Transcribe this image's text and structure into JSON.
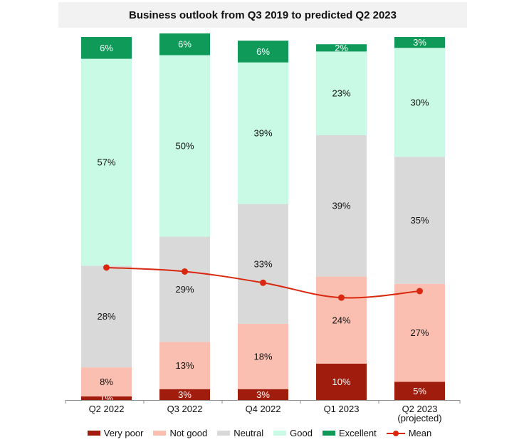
{
  "chart_data": {
    "type": "bar",
    "stacked": true,
    "title": "Business outlook from Q3 2019 to predicted Q2 2023",
    "categories": [
      "Q2 2022",
      "Q3 2022",
      "Q4 2022",
      "Q1 2023",
      "Q2 2023\n(projected)"
    ],
    "series": [
      {
        "name": "Very poor",
        "color": "#a01c0c",
        "values": [
          1,
          3,
          3,
          10,
          5
        ]
      },
      {
        "name": "Not good",
        "color": "#fbbfb1",
        "values": [
          8,
          13,
          18,
          24,
          27
        ]
      },
      {
        "name": "Neutral",
        "color": "#d9d9d9",
        "values": [
          28,
          29,
          33,
          39,
          35
        ]
      },
      {
        "name": "Good",
        "color": "#c8fae6",
        "values": [
          57,
          50,
          39,
          23,
          30
        ]
      },
      {
        "name": "Excellent",
        "color": "#0f9a5a",
        "values": [
          6,
          6,
          6,
          2,
          3
        ]
      }
    ],
    "data_labels": [
      [
        "1%",
        "8%",
        "28%",
        "57%",
        "6%"
      ],
      [
        "3%",
        "13%",
        "29%",
        "50%",
        "6%"
      ],
      [
        "3%",
        "18%",
        "33%",
        "39%",
        "6%"
      ],
      [
        "10%",
        "24%",
        "39%",
        "23%",
        "2%"
      ],
      [
        "5%",
        "27%",
        "35%",
        "30%",
        "3%"
      ]
    ],
    "mean": {
      "name": "Mean",
      "color": "#d9280f",
      "values": [
        36.5,
        35.4,
        32.3,
        28.2,
        30.0
      ]
    },
    "ylim": [
      0,
      100
    ],
    "legend_position": "bottom",
    "grid": false
  }
}
